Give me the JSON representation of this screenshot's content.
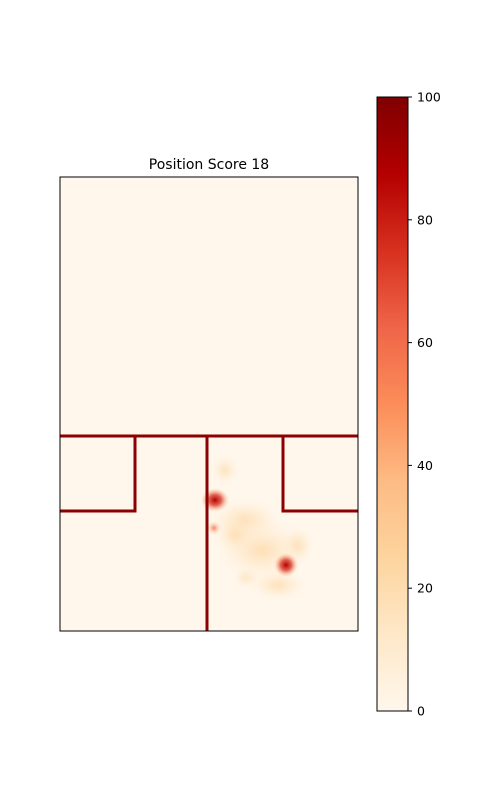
{
  "chart_data": {
    "type": "heatmap",
    "title": "Position Score 18",
    "xlabel": "",
    "ylabel": "",
    "x_ticks_visible": false,
    "y_ticks_visible": false,
    "grid": false,
    "colormap": "OrRd",
    "colorbar": {
      "range": [
        0,
        100
      ],
      "ticks": [
        0,
        20,
        40,
        60,
        80,
        100
      ],
      "tick_labels": [
        "0",
        "20",
        "40",
        "60",
        "80",
        "100"
      ],
      "placement": "right"
    },
    "field_lines_color": "#8b0000",
    "hotspots": [
      {
        "name": "hotspot-upper-left",
        "value": 90
      },
      {
        "name": "hotspot-lower-right",
        "value": 100
      },
      {
        "name": "hotspot-small",
        "value": 60
      },
      {
        "name": "scatter-region",
        "value": 20
      }
    ]
  }
}
